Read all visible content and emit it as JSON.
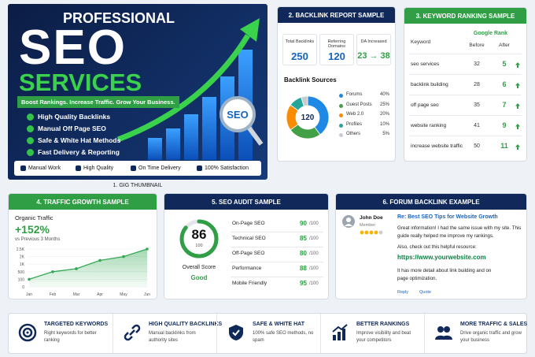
{
  "thumbnail": {
    "title_top": "PROFESSIONAL",
    "title_main": "SEO",
    "title_sub": "SERVICES",
    "tagline": "Boost Rankings. Increase Traffic. Grow Your Business.",
    "bullets": [
      "High Quality Backlinks",
      "Manual Off Page SEO",
      "Safe & White Hat Methods",
      "Fast Delivery & Reporting"
    ],
    "badge": "SEO",
    "features": [
      "Manual Work",
      "High Quality",
      "On Time Delivery",
      "100% Satisfaction"
    ],
    "caption": "1. GIG THUMBNAIL"
  },
  "backlink_report": {
    "title": "2. BACKLINK REPORT SAMPLE",
    "stats": [
      {
        "label": "Total Backlinks",
        "value": 250
      },
      {
        "label": "Referring Domains",
        "value": 120
      },
      {
        "label": "DA Increased",
        "value": "23 → 38"
      }
    ],
    "sources": {
      "type": "pie",
      "title": "Backlink Sources",
      "center_label": "120",
      "categories": [
        "Forums",
        "Guest Posts",
        "Web 2.0",
        "Profiles",
        "Others"
      ],
      "values": [
        40,
        25,
        20,
        10,
        5
      ],
      "value_labels": [
        "40%",
        "25%",
        "20%",
        "10%",
        "5%"
      ],
      "colors": [
        "#1e88e5",
        "#43a047",
        "#fb8c00",
        "#26a69a",
        "#c7ccd3"
      ]
    }
  },
  "keyword_ranking": {
    "title": "3. KEYWORD RANKING SAMPLE",
    "columns": {
      "keyword": "Keyword",
      "group": "Google Rank",
      "before": "Before",
      "after": "After"
    },
    "rows": [
      [
        "seo services",
        32,
        5
      ],
      [
        "backlink building",
        28,
        6
      ],
      [
        "off page seo",
        35,
        7
      ],
      [
        "website ranking",
        41,
        9
      ],
      [
        "increase website traffic",
        50,
        11
      ]
    ]
  },
  "traffic": {
    "title": "4. TRAFFIC GROWTH SAMPLE",
    "label": "Organic Traffic",
    "change": "+152%",
    "period": "vs Previous 3 Months",
    "chart_data": {
      "type": "area",
      "categories": [
        "Jan",
        "Feb",
        "Mar",
        "Apr",
        "May",
        "Jun"
      ],
      "values": [
        100,
        500,
        700,
        1500,
        2000,
        2500
      ],
      "ylim": [
        0,
        2500
      ],
      "yticks": [
        0,
        100,
        500,
        {
          "value": 1000,
          "label": "1K"
        },
        {
          "value": 2000,
          "label": "2K"
        },
        {
          "value": 2500,
          "label": "2.5K"
        }
      ],
      "color": "#34a853"
    }
  },
  "audit": {
    "title": "5. SEO AUDIT SAMPLE",
    "score": 86,
    "score_max": 100,
    "score_label": "Overall Score",
    "rating": "Good",
    "items": [
      {
        "name": "On-Page SEO",
        "score": 90,
        "max": "/100"
      },
      {
        "name": "Technical SEO",
        "score": 85,
        "max": "/100"
      },
      {
        "name": "Off-Page SEO",
        "score": 80,
        "max": "/100"
      },
      {
        "name": "Performance",
        "score": 88,
        "max": "/100"
      },
      {
        "name": "Mobile Friendly",
        "score": 95,
        "max": "/100"
      }
    ]
  },
  "forum": {
    "title": "6. FORUM BACKLINK EXAMPLE",
    "user": "John Doe",
    "role": "Member",
    "post_title": "Re: Best SEO Tips for Website Growth",
    "body": [
      "Great information! I had the same issue with my site. This guide really helped me improve my rankings.",
      "Also, check out this helpful resource:"
    ],
    "link": "https://www.yourwebsite.com",
    "closing": "It has more detail about link building and on page optimization.",
    "actions": [
      "Reply",
      "Quote"
    ]
  },
  "features": [
    {
      "title": "TARGETED KEYWORDS",
      "text": "Right keywords for better ranking"
    },
    {
      "title": "HIGH QUALITY BACKLINKS",
      "text": "Manual backlinks from authority sites"
    },
    {
      "title": "SAFE & WHITE HAT",
      "text": "100% safe SEO methods, no spam"
    },
    {
      "title": "BETTER RANKINGS",
      "text": "Improve visibility and beat your competitors"
    },
    {
      "title": "MORE TRAFFIC & SALES",
      "text": "Drive organic traffic and grow your business"
    }
  ]
}
